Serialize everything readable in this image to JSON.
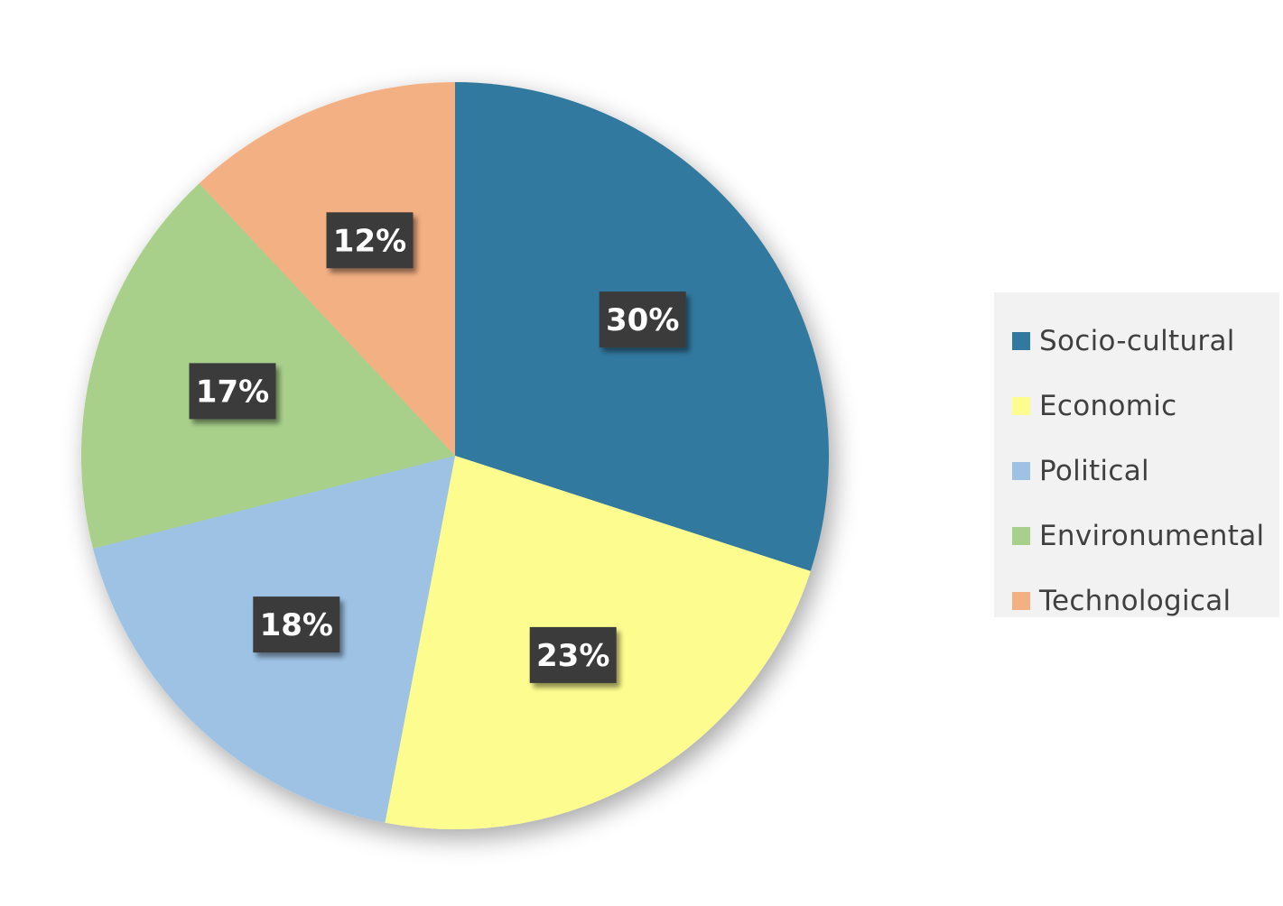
{
  "chart_data": {
    "type": "pie",
    "title": "",
    "categories": [
      "Socio-cultural",
      "Economic",
      "Political",
      "Environumental",
      "Technological"
    ],
    "values": [
      30,
      23,
      18,
      17,
      12
    ],
    "data_labels": [
      "30%",
      "23%",
      "18%",
      "17%",
      "12%"
    ],
    "colors": [
      "#31799f",
      "#fdfd8f",
      "#9dc2e4",
      "#a8d08b",
      "#f3b083"
    ],
    "label_box_color": "#3a3a3a",
    "start_angle": "12 o'clock",
    "direction": "clockwise",
    "legend_position": "right"
  }
}
